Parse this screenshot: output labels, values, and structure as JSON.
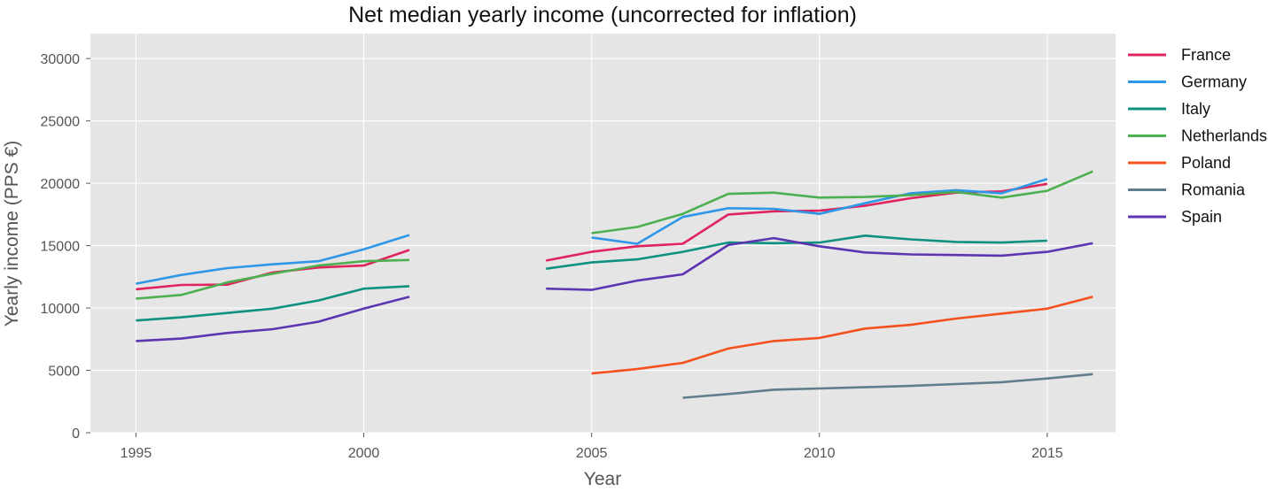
{
  "chart_data": {
    "type": "line",
    "title": "Net median yearly income (uncorrected for inflation)",
    "xlabel": "Year",
    "ylabel": "Yearly income (PPS €)",
    "xlim": [
      1994.0,
      2016.5
    ],
    "ylim": [
      0,
      32000
    ],
    "xticks": [
      1995,
      2000,
      2005,
      2010,
      2015
    ],
    "yticks": [
      0,
      5000,
      10000,
      15000,
      20000,
      25000,
      30000
    ],
    "grid": true,
    "legend": "right",
    "background": "#e5e5e5",
    "grid_color": "#ffffff",
    "series": [
      {
        "name": "France",
        "color": "#e0245e",
        "segments": [
          [
            [
              1995,
              11500
            ],
            [
              1996,
              11850
            ],
            [
              1997,
              11870
            ],
            [
              1998,
              12850
            ],
            [
              1999,
              13250
            ],
            [
              2000,
              13400
            ],
            [
              2001,
              14650
            ]
          ],
          [
            [
              2004,
              13800
            ],
            [
              2005,
              14500
            ],
            [
              2006,
              14950
            ],
            [
              2007,
              15150
            ],
            [
              2008,
              17500
            ],
            [
              2009,
              17750
            ],
            [
              2010,
              17800
            ],
            [
              2011,
              18200
            ],
            [
              2012,
              18800
            ],
            [
              2013,
              19250
            ],
            [
              2014,
              19350
            ],
            [
              2015,
              19950
            ]
          ]
        ]
      },
      {
        "name": "Germany",
        "color": "#2f97e8",
        "segments": [
          [
            [
              1995,
              11950
            ],
            [
              1996,
              12650
            ],
            [
              1997,
              13200
            ],
            [
              1998,
              13500
            ],
            [
              1999,
              13750
            ],
            [
              2000,
              14700
            ],
            [
              2001,
              15850
            ]
          ],
          [
            [
              2005,
              15650
            ],
            [
              2006,
              15150
            ],
            [
              2007,
              17300
            ],
            [
              2008,
              18000
            ],
            [
              2009,
              17950
            ],
            [
              2010,
              17550
            ],
            [
              2011,
              18400
            ],
            [
              2012,
              19200
            ],
            [
              2013,
              19450
            ],
            [
              2014,
              19200
            ],
            [
              2015,
              20350
            ]
          ]
        ]
      },
      {
        "name": "Italy",
        "color": "#0f9180",
        "segments": [
          [
            [
              1995,
              9000
            ],
            [
              1996,
              9250
            ],
            [
              1997,
              9600
            ],
            [
              1998,
              9950
            ],
            [
              1999,
              10600
            ],
            [
              2000,
              11550
            ],
            [
              2001,
              11750
            ]
          ],
          [
            [
              2004,
              13150
            ],
            [
              2005,
              13650
            ],
            [
              2006,
              13900
            ],
            [
              2007,
              14500
            ],
            [
              2008,
              15250
            ],
            [
              2009,
              15200
            ],
            [
              2010,
              15250
            ],
            [
              2011,
              15800
            ],
            [
              2012,
              15500
            ],
            [
              2013,
              15300
            ],
            [
              2014,
              15250
            ],
            [
              2015,
              15400
            ]
          ]
        ]
      },
      {
        "name": "Netherlands",
        "color": "#4caf50",
        "segments": [
          [
            [
              1995,
              10750
            ],
            [
              1996,
              11050
            ],
            [
              1997,
              12050
            ],
            [
              1998,
              12750
            ],
            [
              1999,
              13400
            ],
            [
              2000,
              13750
            ],
            [
              2001,
              13850
            ]
          ],
          [
            [
              2005,
              16000
            ],
            [
              2006,
              16500
            ],
            [
              2007,
              17550
            ],
            [
              2008,
              19150
            ],
            [
              2009,
              19250
            ],
            [
              2010,
              18850
            ],
            [
              2011,
              18900
            ],
            [
              2012,
              19050
            ],
            [
              2013,
              19300
            ],
            [
              2014,
              18850
            ],
            [
              2015,
              19400
            ],
            [
              2016,
              20950
            ]
          ]
        ]
      },
      {
        "name": "Poland",
        "color": "#f4511e",
        "segments": [
          [
            [
              2005,
              4750
            ],
            [
              2006,
              5100
            ],
            [
              2007,
              5600
            ],
            [
              2008,
              6750
            ],
            [
              2009,
              7350
            ],
            [
              2010,
              7600
            ],
            [
              2011,
              8350
            ],
            [
              2012,
              8650
            ],
            [
              2013,
              9150
            ],
            [
              2014,
              9550
            ],
            [
              2015,
              9950
            ],
            [
              2016,
              10900
            ]
          ]
        ]
      },
      {
        "name": "Romania",
        "color": "#607d8b",
        "segments": [
          [
            [
              2007,
              2800
            ],
            [
              2008,
              3100
            ],
            [
              2009,
              3450
            ],
            [
              2010,
              3550
            ],
            [
              2011,
              3650
            ],
            [
              2012,
              3750
            ],
            [
              2013,
              3900
            ],
            [
              2014,
              4050
            ],
            [
              2015,
              4350
            ],
            [
              2016,
              4700
            ]
          ]
        ]
      },
      {
        "name": "Spain",
        "color": "#5e35b1",
        "segments": [
          [
            [
              1995,
              7350
            ],
            [
              1996,
              7550
            ],
            [
              1997,
              8000
            ],
            [
              1998,
              8300
            ],
            [
              1999,
              8900
            ],
            [
              2000,
              9950
            ],
            [
              2001,
              10900
            ]
          ],
          [
            [
              2004,
              11550
            ],
            [
              2005,
              11450
            ],
            [
              2006,
              12200
            ],
            [
              2007,
              12700
            ],
            [
              2008,
              15050
            ],
            [
              2009,
              15600
            ],
            [
              2010,
              14950
            ],
            [
              2011,
              14450
            ],
            [
              2012,
              14300
            ],
            [
              2013,
              14250
            ],
            [
              2014,
              14200
            ],
            [
              2015,
              14500
            ],
            [
              2016,
              15200
            ]
          ]
        ]
      }
    ]
  }
}
